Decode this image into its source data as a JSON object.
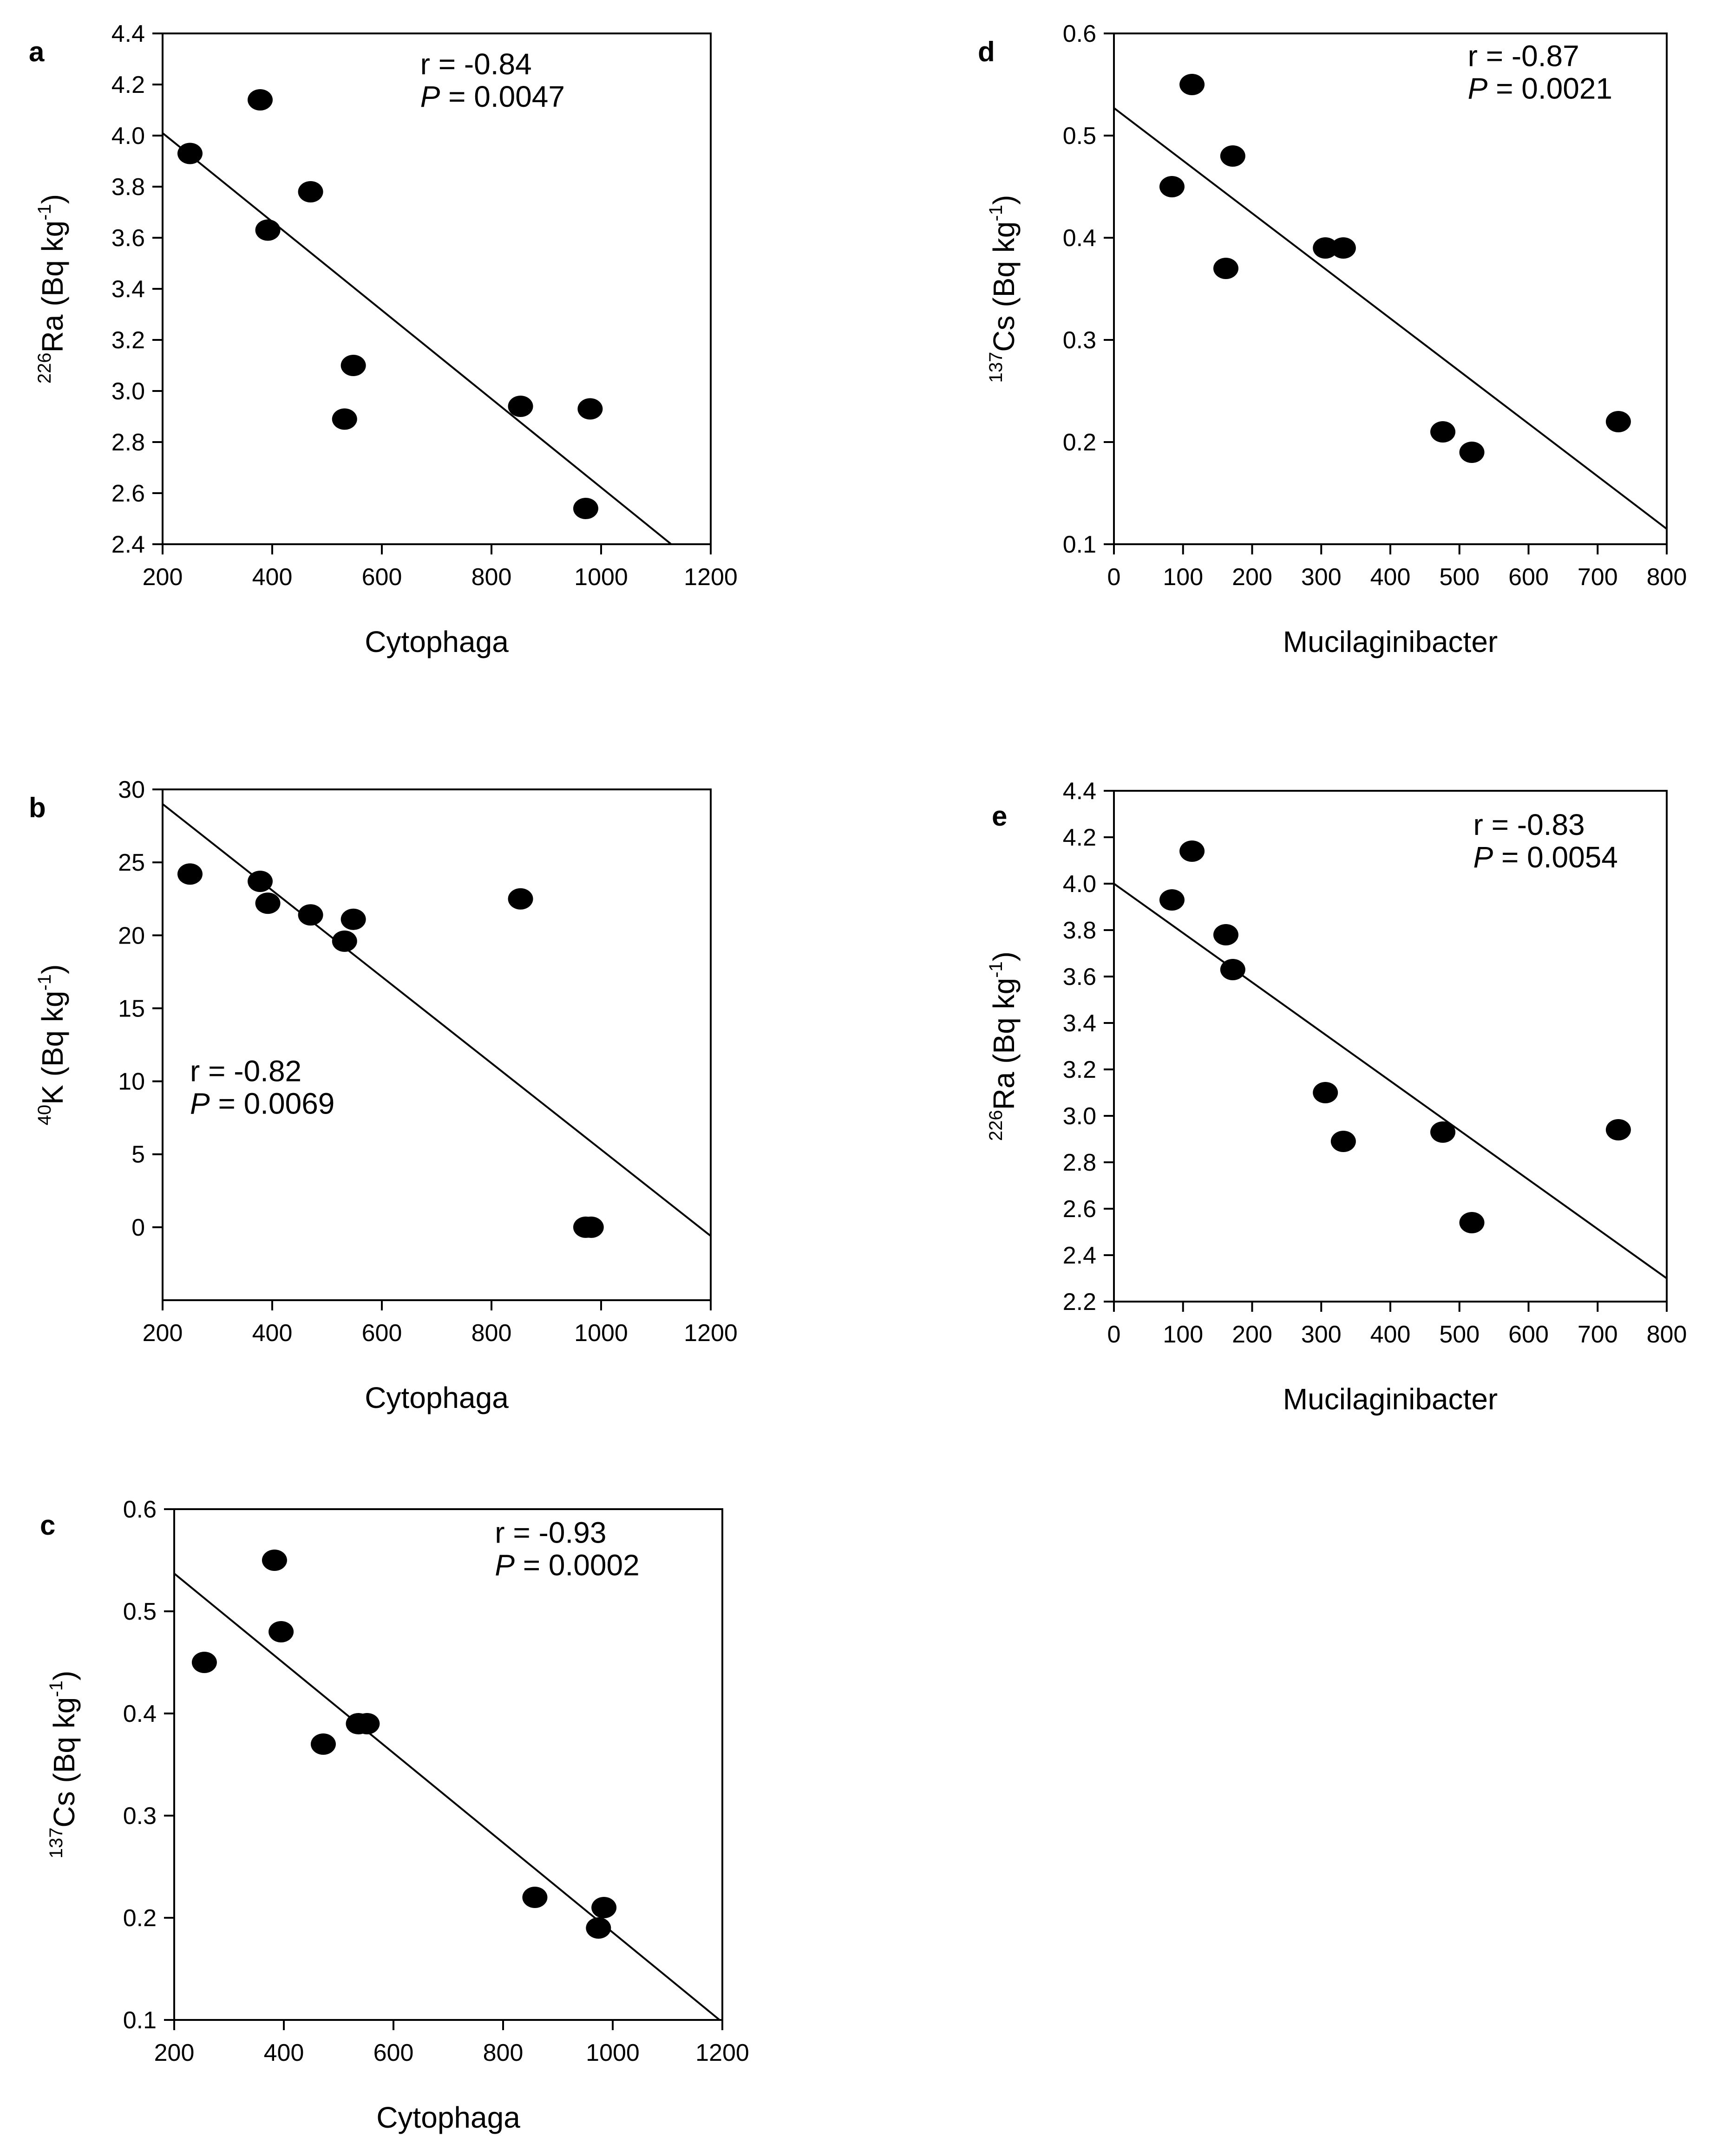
{
  "chart_data": [
    {
      "panel": "a",
      "type": "scatter",
      "xlabel": "Cytophaga",
      "ylabel": {
        "superscript": "226",
        "element": "Ra",
        "unit_text": " (Bq kg",
        "unit_exp": "-1",
        "close": ")"
      },
      "xlim": [
        200,
        1200
      ],
      "ylim": [
        2.4,
        4.4
      ],
      "xticks": [
        200,
        400,
        600,
        800,
        1000,
        1200
      ],
      "yticks": [
        2.4,
        2.6,
        2.8,
        3.0,
        3.2,
        3.4,
        3.6,
        3.8,
        4.0,
        4.2,
        4.4
      ],
      "ytick_labels": [
        "2.4",
        "2.6",
        "2.8",
        "3.0",
        "3.2",
        "3.4",
        "3.6",
        "3.8",
        "4.0",
        "4.2",
        "4.4"
      ],
      "points": [
        [
          250,
          3.93
        ],
        [
          378,
          4.14
        ],
        [
          392,
          3.63
        ],
        [
          470,
          3.78
        ],
        [
          532,
          2.89
        ],
        [
          548,
          3.1
        ],
        [
          853,
          2.94
        ],
        [
          980,
          2.93
        ],
        [
          972,
          2.54
        ]
      ],
      "fit": {
        "x": [
          200,
          1128
        ],
        "y": [
          4.01,
          2.4
        ]
      },
      "annotation": {
        "r": "r = -0.84",
        "p_symbol": "P",
        "p_rest": " = 0.0047"
      },
      "annotation_pos": {
        "x": 670,
        "y": 4.24
      }
    },
    {
      "panel": "b",
      "type": "scatter",
      "xlabel": "Cytophaga",
      "ylabel": {
        "superscript": "40",
        "element": "K",
        "unit_text": " (Bq kg",
        "unit_exp": "-1",
        "close": ")"
      },
      "xlim": [
        200,
        1200
      ],
      "ylim": [
        -5,
        30
      ],
      "xticks": [
        200,
        400,
        600,
        800,
        1000,
        1200
      ],
      "yticks": [
        0,
        5,
        10,
        15,
        20,
        25,
        30
      ],
      "ytick_labels": [
        "0",
        "5",
        "10",
        "15",
        "20",
        "25",
        "30"
      ],
      "points": [
        [
          250,
          24.2
        ],
        [
          378,
          23.7
        ],
        [
          392,
          22.2
        ],
        [
          470,
          21.4
        ],
        [
          532,
          19.6
        ],
        [
          548,
          21.1
        ],
        [
          853,
          22.5
        ],
        [
          972,
          0
        ],
        [
          982,
          0
        ]
      ],
      "fit": {
        "x": [
          200,
          1200
        ],
        "y": [
          29.0,
          -0.6
        ]
      },
      "annotation": {
        "r": "r = -0.82",
        "p_symbol": "P",
        "p_rest": " = 0.0069"
      },
      "annotation_pos": {
        "x": 250,
        "y": 10
      }
    },
    {
      "panel": "c",
      "type": "scatter",
      "xlabel": "Cytophaga",
      "ylabel": {
        "superscript": "137",
        "element": "Cs",
        "unit_text": " (Bq kg",
        "unit_exp": "-1",
        "close": ")"
      },
      "xlim": [
        200,
        1200
      ],
      "ylim": [
        0.1,
        0.6
      ],
      "xticks": [
        200,
        400,
        600,
        800,
        1000,
        1200
      ],
      "yticks": [
        0.1,
        0.2,
        0.3,
        0.4,
        0.5,
        0.6
      ],
      "ytick_labels": [
        "0.1",
        "0.2",
        "0.3",
        "0.4",
        "0.5",
        "0.6"
      ],
      "points": [
        [
          255,
          0.45
        ],
        [
          383,
          0.55
        ],
        [
          395,
          0.48
        ],
        [
          472,
          0.37
        ],
        [
          536,
          0.39
        ],
        [
          552,
          0.39
        ],
        [
          858,
          0.22
        ],
        [
          974,
          0.19
        ],
        [
          984,
          0.21
        ]
      ],
      "fit": {
        "x": [
          200,
          1195
        ],
        "y": [
          0.537,
          0.1
        ]
      },
      "annotation": {
        "r": "r = -0.93",
        "p_symbol": "P",
        "p_rest": " = 0.0002"
      },
      "annotation_pos": {
        "x": 785,
        "y": 0.567
      }
    },
    {
      "panel": "d",
      "type": "scatter",
      "xlabel": "Mucilaginibacter",
      "ylabel": {
        "superscript": "137",
        "element": "Cs",
        "unit_text": " (Bq kg",
        "unit_exp": "-1",
        "close": ")"
      },
      "xlim": [
        0,
        800
      ],
      "ylim": [
        0.1,
        0.6
      ],
      "xticks": [
        0,
        100,
        200,
        300,
        400,
        500,
        600,
        700,
        800
      ],
      "yticks": [
        0.1,
        0.2,
        0.3,
        0.4,
        0.5,
        0.6
      ],
      "ytick_labels": [
        "0.1",
        "0.2",
        "0.3",
        "0.4",
        "0.5",
        "0.6"
      ],
      "points": [
        [
          84,
          0.45
        ],
        [
          113,
          0.55
        ],
        [
          162,
          0.37
        ],
        [
          172,
          0.48
        ],
        [
          306,
          0.39
        ],
        [
          332,
          0.39
        ],
        [
          476,
          0.21
        ],
        [
          518,
          0.19
        ],
        [
          730,
          0.22
        ]
      ],
      "fit": {
        "x": [
          0,
          800
        ],
        "y": [
          0.527,
          0.115
        ]
      },
      "annotation": {
        "r": "r = -0.87",
        "p_symbol": "P",
        "p_rest": " = 0.0021"
      },
      "annotation_pos": {
        "x": 512,
        "y": 0.568
      }
    },
    {
      "panel": "e",
      "type": "scatter",
      "xlabel": "Mucilaginibacter",
      "ylabel": {
        "superscript": "226",
        "element": "Ra",
        "unit_text": " (Bq kg",
        "unit_exp": "-1",
        "close": ")"
      },
      "xlim": [
        0,
        800
      ],
      "ylim": [
        2.2,
        4.4
      ],
      "xticks": [
        0,
        100,
        200,
        300,
        400,
        500,
        600,
        700,
        800
      ],
      "yticks": [
        2.2,
        2.4,
        2.6,
        2.8,
        3.0,
        3.2,
        3.4,
        3.6,
        3.8,
        4.0,
        4.2,
        4.4
      ],
      "ytick_labels": [
        "2.2",
        "2.4",
        "2.6",
        "2.8",
        "3.0",
        "3.2",
        "3.4",
        "3.6",
        "3.8",
        "4.0",
        "4.2",
        "4.4"
      ],
      "points": [
        [
          84,
          3.93
        ],
        [
          113,
          4.14
        ],
        [
          162,
          3.78
        ],
        [
          172,
          3.63
        ],
        [
          306,
          3.1
        ],
        [
          332,
          2.89
        ],
        [
          476,
          2.93
        ],
        [
          518,
          2.54
        ],
        [
          730,
          2.94
        ]
      ],
      "fit": {
        "x": [
          0,
          800
        ],
        "y": [
          4.0,
          2.3
        ]
      },
      "annotation": {
        "r": "r = -0.83",
        "p_symbol": "P",
        "p_rest": " = 0.0054"
      },
      "annotation_pos": {
        "x": 520,
        "y": 4.21
      }
    }
  ]
}
